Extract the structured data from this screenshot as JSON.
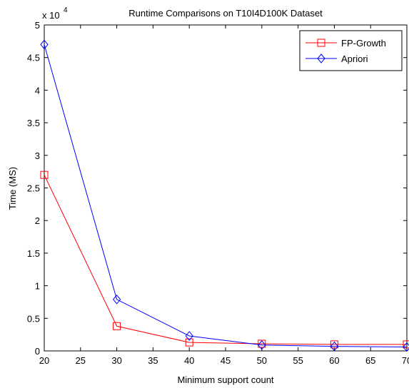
{
  "chart_data": {
    "type": "line",
    "title": "Runtime Comparisons on T10I4D100K Dataset",
    "xlabel": "Minimum support count",
    "ylabel": "Time (MS)",
    "y_multiplier_label": "x 10",
    "y_multiplier_exponent": "4",
    "xlim": [
      20,
      70
    ],
    "ylim": [
      0,
      50000
    ],
    "x_ticks": [
      20,
      25,
      30,
      35,
      40,
      45,
      50,
      55,
      60,
      65,
      70
    ],
    "x_tick_labels": [
      "20",
      "25",
      "30",
      "35",
      "40",
      "45",
      "50",
      "55",
      "60",
      "65",
      "70"
    ],
    "y_ticks": [
      0,
      5000,
      10000,
      15000,
      20000,
      25000,
      30000,
      35000,
      40000,
      45000,
      50000
    ],
    "y_tick_labels": [
      "0",
      "0.5",
      "1",
      "1.5",
      "2",
      "2.5",
      "3",
      "3.5",
      "4",
      "4.5",
      "5"
    ],
    "grid": false,
    "legend_position": "top-right",
    "x": [
      20,
      30,
      40,
      50,
      60,
      70
    ],
    "series": [
      {
        "name": "FP-Growth",
        "color": "#ff0000",
        "marker": "square",
        "values": [
          27000,
          3800,
          1300,
          1100,
          1000,
          1000
        ]
      },
      {
        "name": "Apriori",
        "color": "#0000ff",
        "marker": "diamond",
        "values": [
          47000,
          7900,
          2300,
          900,
          700,
          600
        ]
      }
    ]
  }
}
